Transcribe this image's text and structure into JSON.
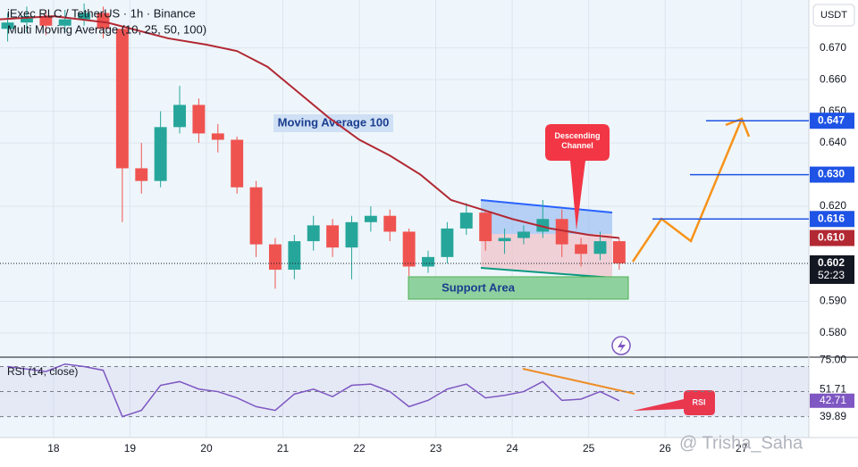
{
  "chart_data": [
    {
      "type": "candlestick",
      "title": "iExec RLC / TetherUS · 1h · Binance",
      "subtitle": "Multi Moving Average (10, 25, 50, 100)",
      "currency": "USDT",
      "countdown": "52:23",
      "annotations": [
        "Moving Average 100",
        "Descending Channel",
        "Support Area"
      ],
      "watermark": "@ Trisha_Saha",
      "up_color": "#26a69a",
      "down_color": "#ef5350",
      "x": [
        17.4,
        17.65,
        17.9,
        18.15,
        18.4,
        18.65,
        18.9,
        19.15,
        19.4,
        19.65,
        19.9,
        20.15,
        20.4,
        20.65,
        20.9,
        21.15,
        21.4,
        21.65,
        21.9,
        22.15,
        22.4,
        22.65,
        22.9,
        23.15,
        23.4,
        23.65,
        23.9,
        24.15,
        24.4,
        24.65,
        24.9,
        25.15,
        25.4
      ],
      "open": [
        0.676,
        0.678,
        0.68,
        0.677,
        0.679,
        0.681,
        0.676,
        0.632,
        0.628,
        0.645,
        0.652,
        0.643,
        0.641,
        0.626,
        0.608,
        0.6,
        0.609,
        0.614,
        0.607,
        0.615,
        0.617,
        0.612,
        0.601,
        0.604,
        0.613,
        0.618,
        0.609,
        0.61,
        0.612,
        0.616,
        0.608,
        0.605,
        0.609
      ],
      "high": [
        0.681,
        0.683,
        0.682,
        0.682,
        0.684,
        0.683,
        0.677,
        0.64,
        0.65,
        0.658,
        0.654,
        0.646,
        0.642,
        0.628,
        0.61,
        0.611,
        0.617,
        0.616,
        0.617,
        0.62,
        0.619,
        0.613,
        0.606,
        0.615,
        0.621,
        0.619,
        0.613,
        0.614,
        0.622,
        0.619,
        0.61,
        0.612,
        0.61
      ],
      "low": [
        0.672,
        0.675,
        0.674,
        0.675,
        0.677,
        0.673,
        0.615,
        0.624,
        0.626,
        0.643,
        0.64,
        0.637,
        0.624,
        0.604,
        0.594,
        0.597,
        0.606,
        0.604,
        0.597,
        0.612,
        0.609,
        0.598,
        0.599,
        0.602,
        0.611,
        0.606,
        0.605,
        0.608,
        0.61,
        0.604,
        0.601,
        0.603,
        0.6
      ],
      "close": [
        0.678,
        0.68,
        0.677,
        0.679,
        0.681,
        0.676,
        0.632,
        0.628,
        0.645,
        0.652,
        0.643,
        0.641,
        0.626,
        0.608,
        0.6,
        0.609,
        0.614,
        0.607,
        0.615,
        0.617,
        0.612,
        0.601,
        0.604,
        0.613,
        0.618,
        0.609,
        0.61,
        0.612,
        0.616,
        0.608,
        0.605,
        0.609,
        0.602
      ],
      "series": [
        {
          "name": "Moving Average 100",
          "color": "#b22833",
          "x": [
            17.3,
            18,
            18.7,
            19.5,
            20,
            20.4,
            20.8,
            21.2,
            21.6,
            22,
            22.4,
            22.8,
            23.2,
            23.6,
            24,
            24.5,
            25,
            25.4
          ],
          "values": [
            0.679,
            0.68,
            0.678,
            0.673,
            0.671,
            0.669,
            0.664,
            0.656,
            0.648,
            0.641,
            0.636,
            0.63,
            0.622,
            0.619,
            0.616,
            0.613,
            0.611,
            0.61
          ]
        }
      ],
      "price_labels": [
        {
          "value": 0.647,
          "label": "0.647",
          "color": "#1e53e5"
        },
        {
          "value": 0.63,
          "label": "0.630",
          "color": "#1e53e5"
        },
        {
          "value": 0.616,
          "label": "0.616",
          "color": "#1e53e5"
        },
        {
          "value": 0.61,
          "label": "0.610",
          "color": "#b22833"
        },
        {
          "value": 0.602,
          "label": "0.602",
          "color": "#131722"
        }
      ],
      "xlim": [
        17.3,
        27.88
      ],
      "ylim": [
        0.5724,
        0.6851
      ],
      "yticks": [
        {
          "value": 0.58,
          "label": "0.580"
        },
        {
          "value": 0.59,
          "label": "0.590"
        },
        {
          "value": 0.62,
          "label": "0.620"
        },
        {
          "value": 0.64,
          "label": "0.640"
        },
        {
          "value": 0.65,
          "label": "0.650"
        },
        {
          "value": 0.66,
          "label": "0.660"
        },
        {
          "value": 0.67,
          "label": "0.670"
        }
      ],
      "grid": true
    },
    {
      "type": "line",
      "title": "RSI (14, close)",
      "annotation": "RSI",
      "color": "#7e57c2",
      "x": [
        17.4,
        17.65,
        17.9,
        18.15,
        18.4,
        18.65,
        18.9,
        19.15,
        19.4,
        19.65,
        19.9,
        20.15,
        20.4,
        20.65,
        20.9,
        21.15,
        21.4,
        21.65,
        21.9,
        22.15,
        22.4,
        22.65,
        22.9,
        23.15,
        23.4,
        23.65,
        23.9,
        24.15,
        24.4,
        24.65,
        24.9,
        25.15,
        25.4
      ],
      "values": [
        70,
        68,
        66,
        72,
        70,
        67,
        30,
        35,
        55,
        58,
        52,
        50,
        45,
        38,
        35,
        48,
        52,
        46,
        55,
        56,
        50,
        38,
        43,
        52,
        56,
        45,
        47,
        50,
        58,
        43,
        44,
        50,
        42.71
      ],
      "levels": [
        70,
        50,
        30
      ],
      "xlim": [
        17.3,
        27.88
      ],
      "ylim": [
        13.3,
        77.5
      ],
      "xticks": [
        18,
        19,
        20,
        21,
        22,
        23,
        24,
        25,
        26,
        27
      ],
      "yticks": [
        {
          "value": 75,
          "label": "75.00"
        },
        {
          "value": 51.71,
          "label": "51.71"
        },
        {
          "value": 42.71,
          "label": "42.71"
        },
        {
          "value": 39.89,
          "label": "39.89"
        }
      ],
      "grid": true
    }
  ]
}
